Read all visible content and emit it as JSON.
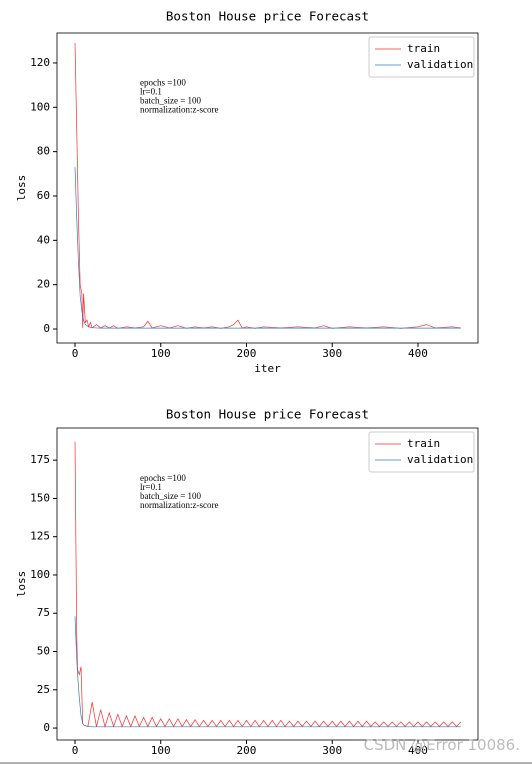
{
  "chart_data": [
    {
      "type": "line",
      "title": "Boston House price Forecast",
      "xlabel": "iter",
      "ylabel": "loss",
      "annotations": [
        "epochs =100",
        "lr=0.1",
        "batch_size = 100",
        "normalization:z-score"
      ],
      "legend": "upper right",
      "xlim": [
        -21,
        470
      ],
      "xticks": [
        0,
        100,
        200,
        300,
        400
      ],
      "ylim": [
        -6.3,
        133.5
      ],
      "yticks": [
        0,
        20,
        40,
        60,
        80,
        100,
        120
      ],
      "x": [
        0,
        2,
        4,
        6,
        8,
        9,
        10,
        12,
        14,
        16,
        18,
        20,
        25,
        30,
        35,
        40,
        45,
        50,
        60,
        70,
        80,
        85,
        90,
        100,
        110,
        120,
        130,
        140,
        150,
        160,
        170,
        180,
        185,
        190,
        195,
        200,
        210,
        220,
        240,
        260,
        280,
        290,
        300,
        320,
        340,
        360,
        380,
        400,
        410,
        420,
        440,
        450
      ],
      "series": [
        {
          "name": "train",
          "color": "#ff2a2a",
          "values": [
            129,
            90,
            50,
            20,
            16,
            0.5,
            16,
            3,
            4,
            1,
            3,
            0.5,
            2,
            0.5,
            1.5,
            0.5,
            1.5,
            0.3,
            1,
            0.5,
            1,
            3.5,
            0.5,
            1.5,
            0.5,
            1.5,
            0.3,
            1,
            0.5,
            1,
            0.3,
            1,
            2,
            4,
            0.5,
            1,
            0.3,
            1,
            0.5,
            1,
            0.5,
            1.5,
            0.3,
            1,
            0.5,
            1,
            0.3,
            1,
            2,
            0.5,
            1,
            0.5
          ]
        },
        {
          "name": "validation",
          "color": "#2f7fc1",
          "values": [
            73,
            50,
            30,
            15,
            8,
            6,
            4,
            2,
            1.5,
            1,
            0.8,
            0.6,
            0.5,
            0.4,
            0.4,
            0.4,
            0.4,
            0.4,
            0.4,
            0.4,
            0.4,
            0.4,
            0.4,
            0.4,
            0.4,
            0.4,
            0.4,
            0.4,
            0.4,
            0.4,
            0.4,
            0.4,
            0.4,
            0.4,
            0.4,
            0.4,
            0.4,
            0.4,
            0.4,
            0.4,
            0.4,
            0.4,
            0.4,
            0.4,
            0.4,
            0.4,
            0.4,
            0.4,
            0.4,
            0.4,
            0.4,
            0.4
          ]
        }
      ]
    },
    {
      "type": "line",
      "title": "Boston House price Forecast",
      "ylabel": "loss",
      "annotations": [
        "epochs =100",
        "lr=0.1",
        "batch_size = 100",
        "normalization:z-score"
      ],
      "legend": "upper right",
      "xlim": [
        -21,
        470
      ],
      "xticks": [
        0,
        100,
        200,
        300,
        400
      ],
      "ylim": [
        -7.8,
        196
      ],
      "yticks": [
        0,
        25,
        50,
        75,
        100,
        125,
        150,
        175
      ],
      "x": [
        0,
        2,
        3,
        5,
        7,
        9,
        10,
        15,
        20,
        25,
        30,
        35,
        40,
        45,
        50,
        55,
        60,
        65,
        70,
        75,
        80,
        85,
        90,
        95,
        100,
        105,
        110,
        115,
        120,
        125,
        130,
        135,
        140,
        145,
        150,
        155,
        160,
        165,
        170,
        175,
        180,
        185,
        190,
        195,
        200,
        205,
        210,
        215,
        220,
        225,
        230,
        235,
        240,
        245,
        250,
        255,
        260,
        265,
        270,
        275,
        280,
        285,
        290,
        295,
        300,
        305,
        310,
        315,
        320,
        325,
        330,
        335,
        340,
        345,
        350,
        355,
        360,
        365,
        370,
        375,
        380,
        385,
        390,
        395,
        400,
        405,
        410,
        415,
        420,
        425,
        430,
        435,
        440,
        445,
        450
      ],
      "series": [
        {
          "name": "train",
          "color": "#ff2a2a",
          "values": [
            187,
            60,
            38,
            35,
            40,
            3,
            2,
            1,
            17,
            1,
            12,
            1,
            10,
            1,
            9,
            1,
            8,
            1,
            8,
            1,
            7,
            1,
            7,
            1,
            6,
            1,
            6,
            1,
            6,
            1,
            5.5,
            1,
            5.5,
            1,
            5,
            1,
            5,
            1,
            5,
            1,
            5,
            1,
            5,
            1,
            5,
            1,
            5,
            1,
            5,
            1,
            5,
            1,
            5,
            1,
            4.5,
            1,
            4.5,
            1,
            4.5,
            1,
            4.5,
            1,
            4.5,
            1,
            4.5,
            1,
            4.5,
            1,
            4.5,
            1,
            4.5,
            1,
            4.5,
            1,
            4,
            1,
            4,
            1,
            4,
            1,
            4,
            1,
            4,
            1,
            4,
            1,
            4,
            1,
            4,
            1,
            4,
            1,
            4,
            1,
            4
          ]
        },
        {
          "name": "validation",
          "color": "#2f7fc1",
          "values": [
            73,
            45,
            35,
            20,
            8,
            3,
            2,
            1,
            0.8,
            0.8,
            0.8,
            0.8,
            0.8,
            0.8,
            0.8,
            0.8,
            0.8,
            0.8,
            0.8,
            0.8,
            0.8,
            0.8,
            0.8,
            0.8,
            0.8,
            0.8,
            0.8,
            0.8,
            0.8,
            0.8,
            0.8,
            0.8,
            0.8,
            0.8,
            0.8,
            0.8,
            0.8,
            0.8,
            0.8,
            0.8,
            0.8,
            0.8,
            0.8,
            0.8,
            0.8,
            0.8,
            0.8,
            0.8,
            0.8,
            0.8,
            0.8,
            0.8,
            0.8,
            0.8,
            0.8,
            0.8,
            0.8,
            0.8,
            0.8,
            0.8,
            0.8,
            0.8,
            0.8,
            0.8,
            0.8,
            0.8,
            0.8,
            0.8,
            0.8,
            0.8,
            0.8,
            0.8,
            0.8,
            0.8,
            0.8,
            0.8,
            0.8,
            0.8,
            0.8,
            0.8,
            0.8,
            0.8,
            0.8,
            0.8,
            0.8,
            0.8,
            0.8,
            0.8,
            0.8,
            0.8,
            0.8,
            0.8,
            0.8,
            0.8,
            0.8
          ]
        }
      ]
    }
  ],
  "watermark": "CSDN @Error 10086."
}
